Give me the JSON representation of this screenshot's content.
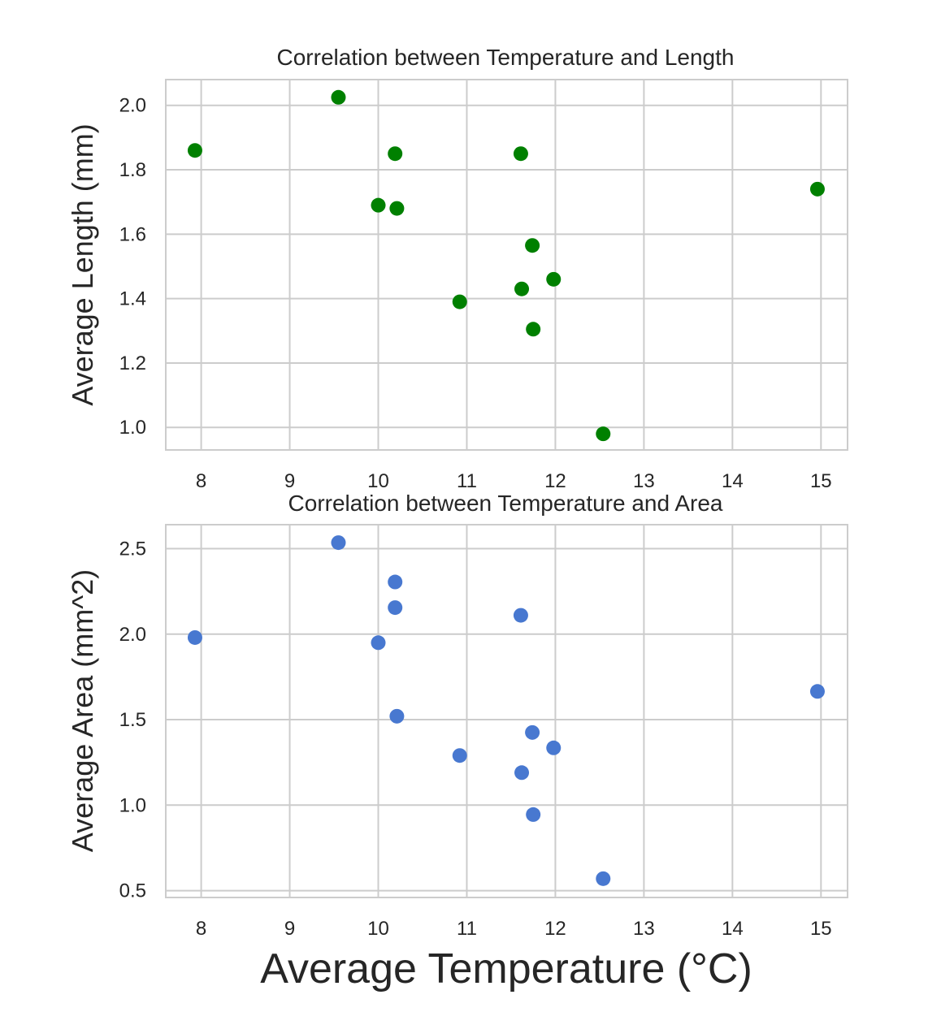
{
  "chart_data": [
    {
      "type": "scatter",
      "title": "Correlation between Temperature and Length",
      "xlabel": "",
      "ylabel": "Average Length (mm)",
      "xlim": [
        7.6,
        15.3
      ],
      "ylim": [
        0.93,
        2.08
      ],
      "xticks": [
        8,
        9,
        10,
        11,
        12,
        13,
        14,
        15
      ],
      "yticks": [
        1.0,
        1.2,
        1.4,
        1.6,
        1.8,
        2.0
      ],
      "ytick_labels": [
        "1.0",
        "1.2",
        "1.4",
        "1.6",
        "1.8",
        "2.0"
      ],
      "grid": true,
      "color": "#008000",
      "series": [
        {
          "x": [
            7.93,
            9.55,
            10.0,
            10.19,
            10.21,
            10.92,
            11.61,
            11.62,
            11.74,
            11.75,
            11.98,
            12.54,
            14.96
          ],
          "y": [
            1.86,
            2.025,
            1.69,
            1.85,
            1.68,
            1.39,
            1.85,
            1.43,
            1.565,
            1.305,
            1.46,
            0.98,
            1.74
          ]
        }
      ]
    },
    {
      "type": "scatter",
      "title": "Correlation between Temperature and Area",
      "xlabel": "Average Temperature (°C)",
      "ylabel": "Average Area (mm^2)",
      "xlim": [
        7.6,
        15.3
      ],
      "ylim": [
        0.46,
        2.64
      ],
      "xticks": [
        8,
        9,
        10,
        11,
        12,
        13,
        14,
        15
      ],
      "yticks": [
        0.5,
        1.0,
        1.5,
        2.0,
        2.5
      ],
      "ytick_labels": [
        "0.5",
        "1.0",
        "1.5",
        "2.0",
        "2.5"
      ],
      "grid": true,
      "color": "#4878d0",
      "series": [
        {
          "x": [
            7.93,
            9.55,
            10.0,
            10.19,
            10.19,
            10.21,
            10.92,
            11.61,
            11.62,
            11.74,
            11.75,
            11.98,
            12.54,
            14.96
          ],
          "y": [
            1.98,
            2.535,
            1.95,
            2.305,
            2.155,
            1.52,
            1.29,
            2.11,
            1.19,
            1.425,
            0.945,
            1.335,
            0.57,
            1.665
          ]
        }
      ]
    }
  ]
}
